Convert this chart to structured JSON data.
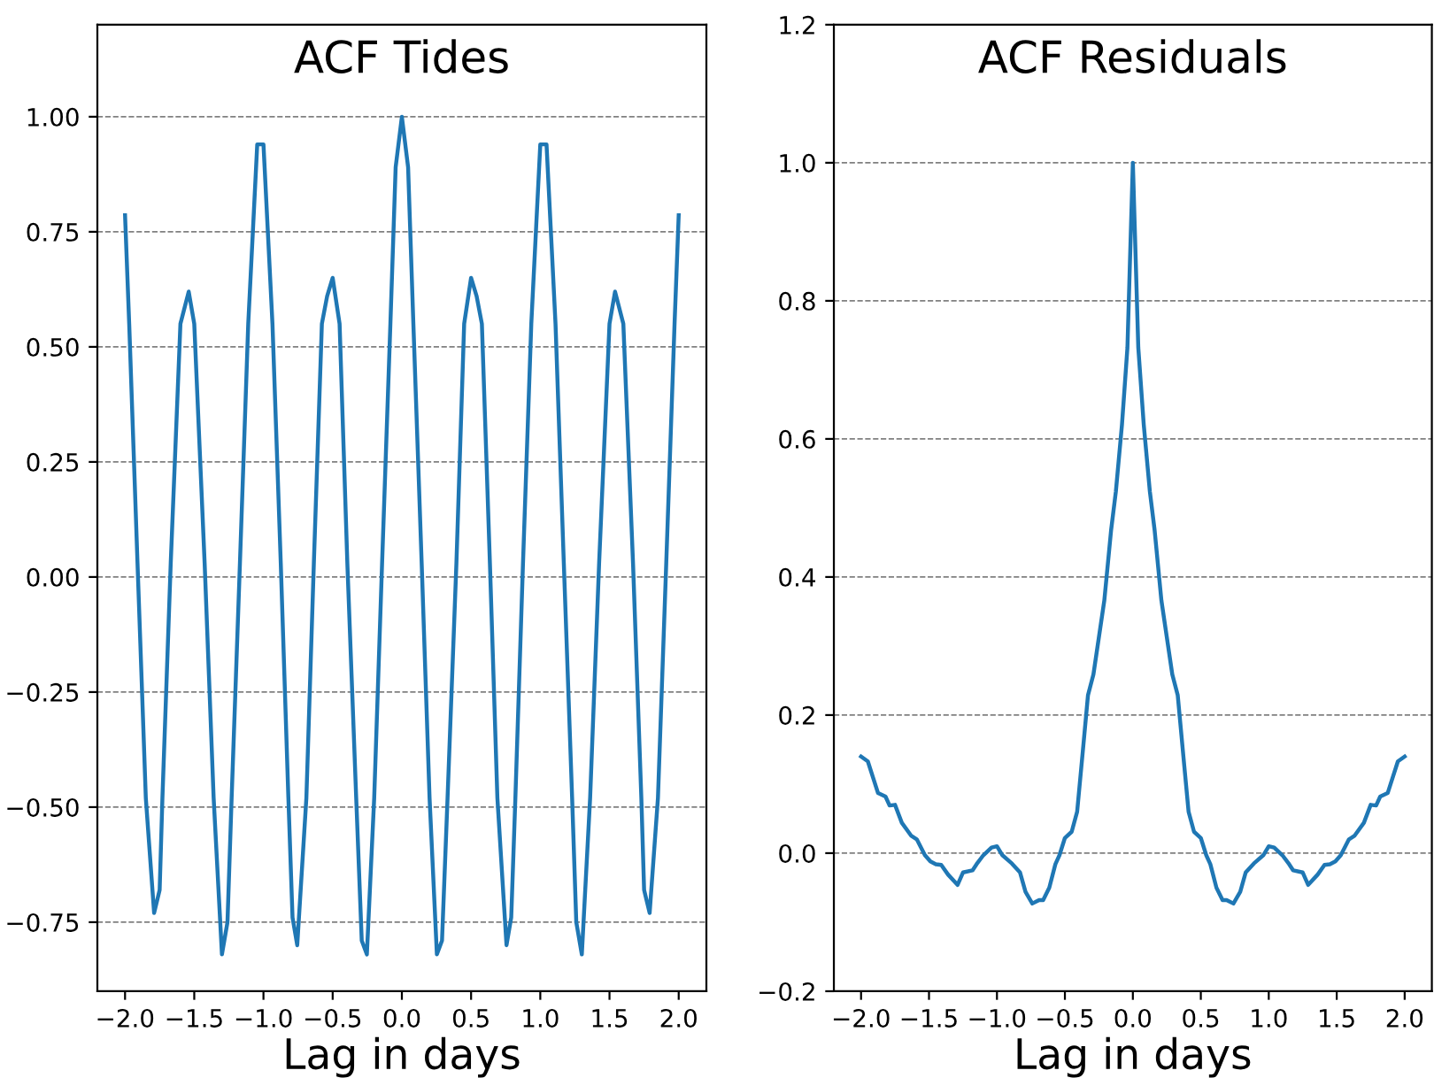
{
  "chart_data": [
    {
      "type": "line",
      "title": "ACF Tides",
      "xlabel": "Lag in days",
      "grid": "y",
      "xlim": [
        -2.2,
        2.2
      ],
      "xticks": [
        {
          "value": -2.0,
          "label": "−2.0"
        },
        {
          "value": -1.5,
          "label": "−1.5"
        },
        {
          "value": -1.0,
          "label": "−1.0"
        },
        {
          "value": -0.5,
          "label": "−0.5"
        },
        {
          "value": 0.0,
          "label": "0.0"
        },
        {
          "value": 0.5,
          "label": "0.5"
        },
        {
          "value": 1.0,
          "label": "1.0"
        },
        {
          "value": 1.5,
          "label": "1.5"
        },
        {
          "value": 2.0,
          "label": "2.0"
        }
      ],
      "ylim": [
        -0.9,
        1.2
      ],
      "yticks": [
        {
          "value": -0.75,
          "label": "−0.75"
        },
        {
          "value": -0.5,
          "label": "−0.50"
        },
        {
          "value": -0.25,
          "label": "−0.25"
        },
        {
          "value": 0.0,
          "label": "0.00"
        },
        {
          "value": 0.25,
          "label": "0.25"
        },
        {
          "value": 0.5,
          "label": "0.50"
        },
        {
          "value": 0.75,
          "label": "0.75"
        },
        {
          "value": 1.0,
          "label": "1.00"
        }
      ],
      "series": [
        {
          "color": "#1f77b4",
          "x": [
            -2.0,
            -1.97,
            -1.91,
            -1.85,
            -1.79,
            -1.75,
            -1.73,
            -1.67,
            -1.6,
            -1.54,
            -1.5,
            -1.425,
            -1.36,
            -1.3,
            -1.26,
            -1.23,
            -1.17,
            -1.11,
            -1.045,
            -1.0,
            -0.935,
            -0.875,
            -0.82,
            -0.79,
            -0.756,
            -0.69,
            -0.636,
            -0.578,
            -0.54,
            -0.5,
            -0.45,
            -0.394,
            -0.33,
            -0.29,
            -0.253,
            -0.2,
            -0.143,
            -0.083,
            -0.045,
            0.0,
            0.045,
            0.083,
            0.143,
            0.2,
            0.253,
            0.29,
            0.33,
            0.394,
            0.45,
            0.5,
            0.54,
            0.578,
            0.636,
            0.69,
            0.756,
            0.79,
            0.82,
            0.875,
            0.935,
            1.0,
            1.045,
            1.11,
            1.17,
            1.23,
            1.26,
            1.3,
            1.36,
            1.425,
            1.5,
            1.54,
            1.6,
            1.67,
            1.73,
            1.75,
            1.79,
            1.85,
            1.91,
            1.97,
            2.0
          ],
          "values": [
            0.786,
            0.55,
            0.03,
            -0.48,
            -0.73,
            -0.68,
            -0.48,
            0.03,
            0.55,
            0.62,
            0.55,
            0.03,
            -0.48,
            -0.82,
            -0.75,
            -0.48,
            0.03,
            0.55,
            0.94,
            0.94,
            0.55,
            0.03,
            -0.48,
            -0.74,
            -0.8,
            -0.48,
            0.03,
            0.55,
            0.61,
            0.65,
            0.55,
            0.03,
            -0.48,
            -0.79,
            -0.82,
            -0.48,
            0.03,
            0.55,
            0.89,
            1.0,
            0.89,
            0.55,
            0.03,
            -0.48,
            -0.82,
            -0.79,
            -0.48,
            0.03,
            0.55,
            0.65,
            0.61,
            0.55,
            0.03,
            -0.48,
            -0.8,
            -0.74,
            -0.48,
            0.03,
            0.55,
            0.94,
            0.94,
            0.55,
            0.03,
            -0.48,
            -0.75,
            -0.82,
            -0.48,
            0.03,
            0.55,
            0.62,
            0.55,
            0.03,
            -0.48,
            -0.68,
            -0.73,
            -0.48,
            0.03,
            0.55,
            0.786
          ]
        }
      ]
    },
    {
      "type": "line",
      "title": "ACF Residuals",
      "xlabel": "Lag in days",
      "grid": "y",
      "xlim": [
        -2.2,
        2.2
      ],
      "xticks": [
        {
          "value": -2.0,
          "label": "−2.0"
        },
        {
          "value": -1.5,
          "label": "−1.5"
        },
        {
          "value": -1.0,
          "label": "−1.0"
        },
        {
          "value": -0.5,
          "label": "−0.5"
        },
        {
          "value": 0.0,
          "label": "0.0"
        },
        {
          "value": 0.5,
          "label": "0.5"
        },
        {
          "value": 1.0,
          "label": "1.0"
        },
        {
          "value": 1.5,
          "label": "1.5"
        },
        {
          "value": 2.0,
          "label": "2.0"
        }
      ],
      "ylim": [
        -0.2,
        1.2
      ],
      "yticks": [
        {
          "value": -0.2,
          "label": "−0.2"
        },
        {
          "value": 0.0,
          "label": "0.0"
        },
        {
          "value": 0.2,
          "label": "0.2"
        },
        {
          "value": 0.4,
          "label": "0.4"
        },
        {
          "value": 0.6,
          "label": "0.6"
        },
        {
          "value": 0.8,
          "label": "0.8"
        },
        {
          "value": 1.0,
          "label": "1.0"
        },
        {
          "value": 1.2,
          "label": "1.2"
        }
      ],
      "series": [
        {
          "color": "#1f77b4",
          "x": [
            -2.0,
            -1.95,
            -1.875,
            -1.82,
            -1.79,
            -1.75,
            -1.7,
            -1.63,
            -1.59,
            -1.53,
            -1.49,
            -1.45,
            -1.41,
            -1.36,
            -1.29,
            -1.25,
            -1.18,
            -1.15,
            -1.1,
            -1.04,
            -1.0,
            -0.96,
            -0.89,
            -0.83,
            -0.79,
            -0.74,
            -0.69,
            -0.66,
            -0.615,
            -0.57,
            -0.54,
            -0.5,
            -0.45,
            -0.41,
            -0.37,
            -0.33,
            -0.29,
            -0.21,
            -0.16,
            -0.125,
            -0.08,
            -0.04,
            0.0,
            0.04,
            0.08,
            0.125,
            0.16,
            0.21,
            0.29,
            0.33,
            0.37,
            0.41,
            0.45,
            0.5,
            0.54,
            0.57,
            0.615,
            0.66,
            0.69,
            0.74,
            0.79,
            0.83,
            0.89,
            0.96,
            1.0,
            1.04,
            1.1,
            1.15,
            1.18,
            1.25,
            1.29,
            1.36,
            1.41,
            1.45,
            1.49,
            1.53,
            1.59,
            1.63,
            1.7,
            1.75,
            1.79,
            1.82,
            1.875,
            1.95,
            2.0
          ],
          "values": [
            0.14,
            0.133,
            0.087,
            0.082,
            0.069,
            0.07,
            0.044,
            0.025,
            0.02,
            -0.003,
            -0.012,
            -0.016,
            -0.017,
            -0.031,
            -0.046,
            -0.028,
            -0.025,
            -0.016,
            -0.003,
            0.008,
            0.01,
            -0.003,
            -0.015,
            -0.028,
            -0.056,
            -0.073,
            -0.068,
            -0.068,
            -0.05,
            -0.016,
            -0.003,
            0.022,
            0.031,
            0.06,
            0.144,
            0.229,
            0.259,
            0.366,
            0.468,
            0.524,
            0.621,
            0.732,
            1.0,
            0.732,
            0.621,
            0.524,
            0.468,
            0.366,
            0.259,
            0.229,
            0.144,
            0.06,
            0.031,
            0.022,
            -0.003,
            -0.016,
            -0.05,
            -0.068,
            -0.068,
            -0.073,
            -0.056,
            -0.028,
            -0.015,
            -0.003,
            0.01,
            0.008,
            -0.003,
            -0.016,
            -0.025,
            -0.028,
            -0.046,
            -0.031,
            -0.017,
            -0.016,
            -0.012,
            -0.003,
            0.02,
            0.025,
            0.044,
            0.07,
            0.069,
            0.082,
            0.087,
            0.133,
            0.14
          ]
        }
      ]
    }
  ]
}
